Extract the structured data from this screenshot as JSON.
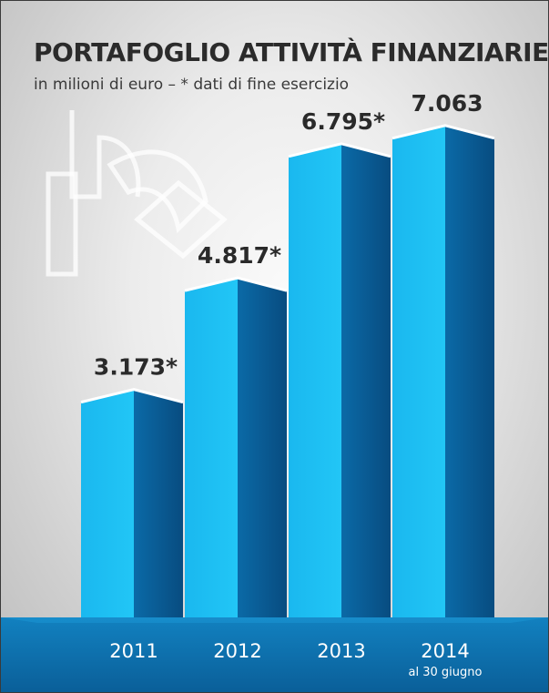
{
  "title": "PORTAFOGLIO ATTIVITÀ FINANZIARIE",
  "subtitle": "in milioni di euro – * dati di fine esercizio",
  "colors": {
    "front": "#1cc0f4",
    "side": "#0a5b95",
    "floor": "#0e72ad",
    "label_text": "#2a2a2a"
  },
  "chart_data": {
    "type": "bar",
    "title": "PORTAFOGLIO ATTIVITÀ FINANZIARIE",
    "subtitle": "in milioni di euro – * dati di fine esercizio",
    "categories": [
      "2011",
      "2012",
      "2013",
      "2014"
    ],
    "category_notes": [
      "",
      "",
      "",
      "al 30 giugno"
    ],
    "values": [
      3173,
      4817,
      6795,
      7063
    ],
    "value_labels": [
      "3.173*",
      "4.817*",
      "6.795*",
      "7.063"
    ],
    "unit": "milioni di euro",
    "grid": false,
    "legend": "none"
  }
}
